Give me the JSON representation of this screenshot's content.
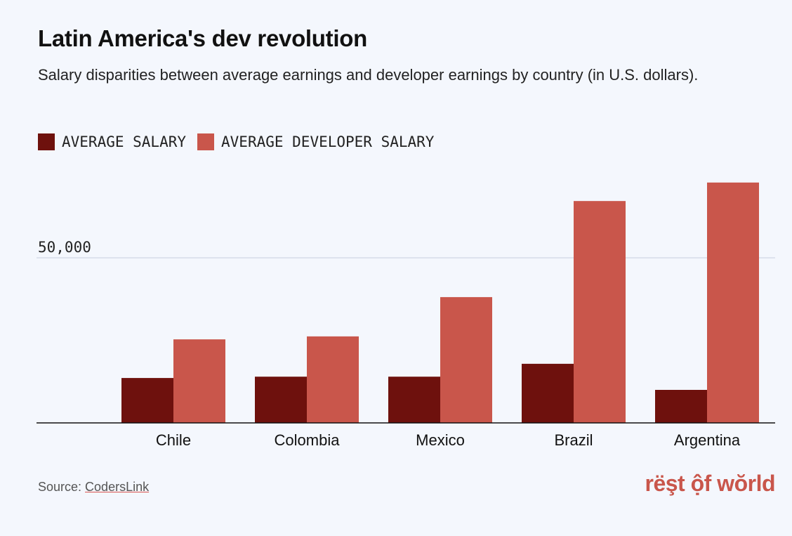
{
  "title": "Latin America's dev revolution",
  "subtitle": "Salary disparities between average earnings and developer earnings by country (in U.S. dollars).",
  "source_label": "Source: ",
  "source_link": "CodersLink",
  "logo": "rëşt ộf wŏrld",
  "colors": {
    "avg": "#6e110d",
    "dev": "#c9564b"
  },
  "chart_data": {
    "type": "bar",
    "title": "Latin America's dev revolution",
    "categories": [
      "Chile",
      "Colombia",
      "Mexico",
      "Brazil",
      "Argentina"
    ],
    "series": [
      {
        "name": "AVERAGE SALARY",
        "values": [
          13600,
          14000,
          14000,
          17900,
          10000
        ]
      },
      {
        "name": "AVERAGE DEVELOPER SALARY",
        "values": [
          25300,
          26200,
          38100,
          67200,
          72800
        ]
      }
    ],
    "yticks": [
      50000
    ],
    "ytick_labels": [
      "50,000"
    ],
    "ylim": [
      0,
      78000
    ],
    "grid": true,
    "legend": "top-left"
  }
}
